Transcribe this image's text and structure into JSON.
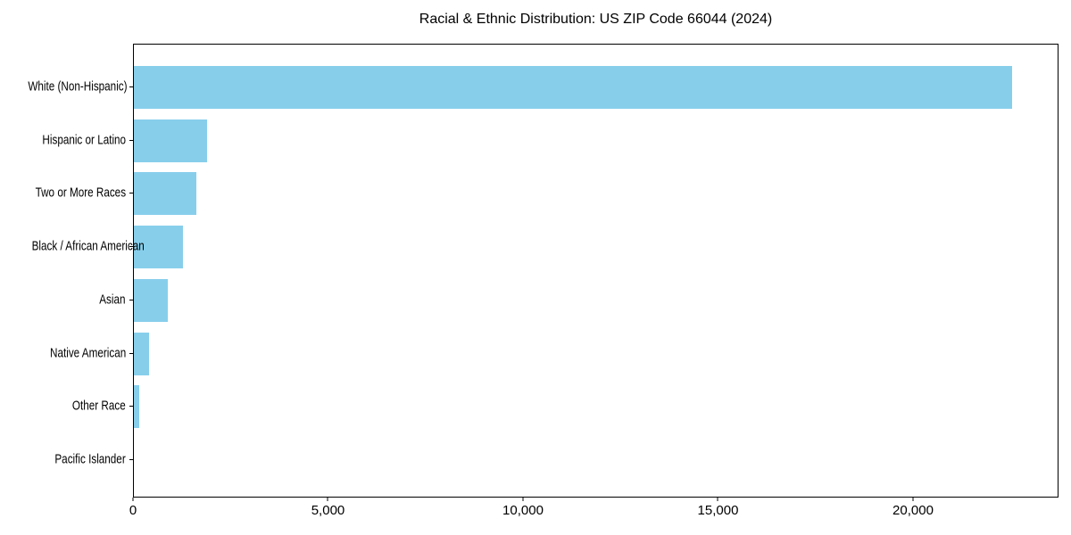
{
  "chart_data": {
    "type": "bar",
    "orientation": "horizontal",
    "title": "Racial & Ethnic Distribution: US ZIP Code 66044 (2024)",
    "categories": [
      "White (Non-Hispanic)",
      "Hispanic or Latino",
      "Two or More Races",
      "Black / African American",
      "Asian",
      "Native American",
      "Other Race",
      "Pacific Islander"
    ],
    "values": [
      22570,
      1880,
      1600,
      1270,
      870,
      400,
      130,
      0
    ],
    "xlabel": "",
    "ylabel": "",
    "xlim": [
      0,
      23730
    ],
    "x_ticks": [
      {
        "value": 0,
        "label": "0"
      },
      {
        "value": 5000,
        "label": "5,000"
      },
      {
        "value": 10000,
        "label": "10,000"
      },
      {
        "value": 15000,
        "label": "15,000"
      },
      {
        "value": 20000,
        "label": "20,000"
      }
    ],
    "bar_color": "#87CEEB",
    "axis_color": "#000000",
    "grid": false,
    "legend": null
  }
}
